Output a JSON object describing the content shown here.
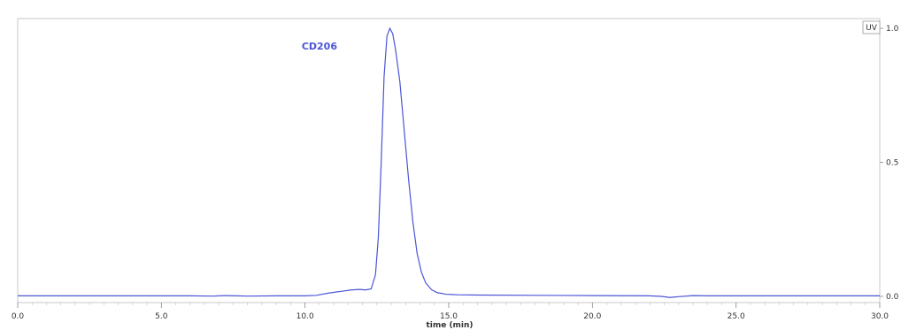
{
  "chart_data": {
    "type": "line",
    "title": "",
    "xlabel": "time (min)",
    "ylabel": "",
    "xlim": [
      0,
      30
    ],
    "ylim": [
      0,
      1.0
    ],
    "x_ticks": [
      0,
      5,
      10,
      15,
      20,
      25,
      30
    ],
    "x_tick_labels": [
      "0.0",
      "5.0",
      "10.0",
      "15.0",
      "20.0",
      "25.0",
      "30.0"
    ],
    "y_ticks": [
      0,
      0.5,
      1.0
    ],
    "y_tick_labels": [
      "0.0",
      "0.5",
      "1.0"
    ],
    "y_axis_side": "right",
    "grid": false,
    "legend": {
      "placement": "top-right",
      "entries": [
        "UV"
      ]
    },
    "annotations": [
      {
        "text": "CD206",
        "x": 10.5,
        "y": 0.92
      }
    ],
    "series": [
      {
        "name": "UV",
        "color": "#4a55d6",
        "points": [
          [
            0,
            0.002
          ],
          [
            2,
            0.002
          ],
          [
            4,
            0.002
          ],
          [
            6,
            0.002
          ],
          [
            6.8,
            0.001
          ],
          [
            7.2,
            0.003
          ],
          [
            7.6,
            0.002
          ],
          [
            8,
            0.001
          ],
          [
            9,
            0.002
          ],
          [
            10,
            0.002
          ],
          [
            10.4,
            0.004
          ],
          [
            10.8,
            0.012
          ],
          [
            11.2,
            0.018
          ],
          [
            11.6,
            0.024
          ],
          [
            11.9,
            0.026
          ],
          [
            12.1,
            0.024
          ],
          [
            12.3,
            0.028
          ],
          [
            12.45,
            0.08
          ],
          [
            12.55,
            0.22
          ],
          [
            12.65,
            0.5
          ],
          [
            12.75,
            0.82
          ],
          [
            12.85,
            0.97
          ],
          [
            12.95,
            1.0
          ],
          [
            13.05,
            0.98
          ],
          [
            13.15,
            0.92
          ],
          [
            13.3,
            0.8
          ],
          [
            13.45,
            0.62
          ],
          [
            13.6,
            0.44
          ],
          [
            13.75,
            0.28
          ],
          [
            13.9,
            0.16
          ],
          [
            14.05,
            0.09
          ],
          [
            14.2,
            0.05
          ],
          [
            14.4,
            0.025
          ],
          [
            14.6,
            0.014
          ],
          [
            14.9,
            0.008
          ],
          [
            15.3,
            0.006
          ],
          [
            16,
            0.005
          ],
          [
            18,
            0.004
          ],
          [
            20,
            0.003
          ],
          [
            22,
            0.002
          ],
          [
            22.4,
            0.0
          ],
          [
            22.7,
            -0.004
          ],
          [
            23,
            -0.001
          ],
          [
            23.5,
            0.003
          ],
          [
            24,
            0.002
          ],
          [
            26,
            0.002
          ],
          [
            28,
            0.002
          ],
          [
            30,
            0.002
          ]
        ]
      }
    ]
  }
}
